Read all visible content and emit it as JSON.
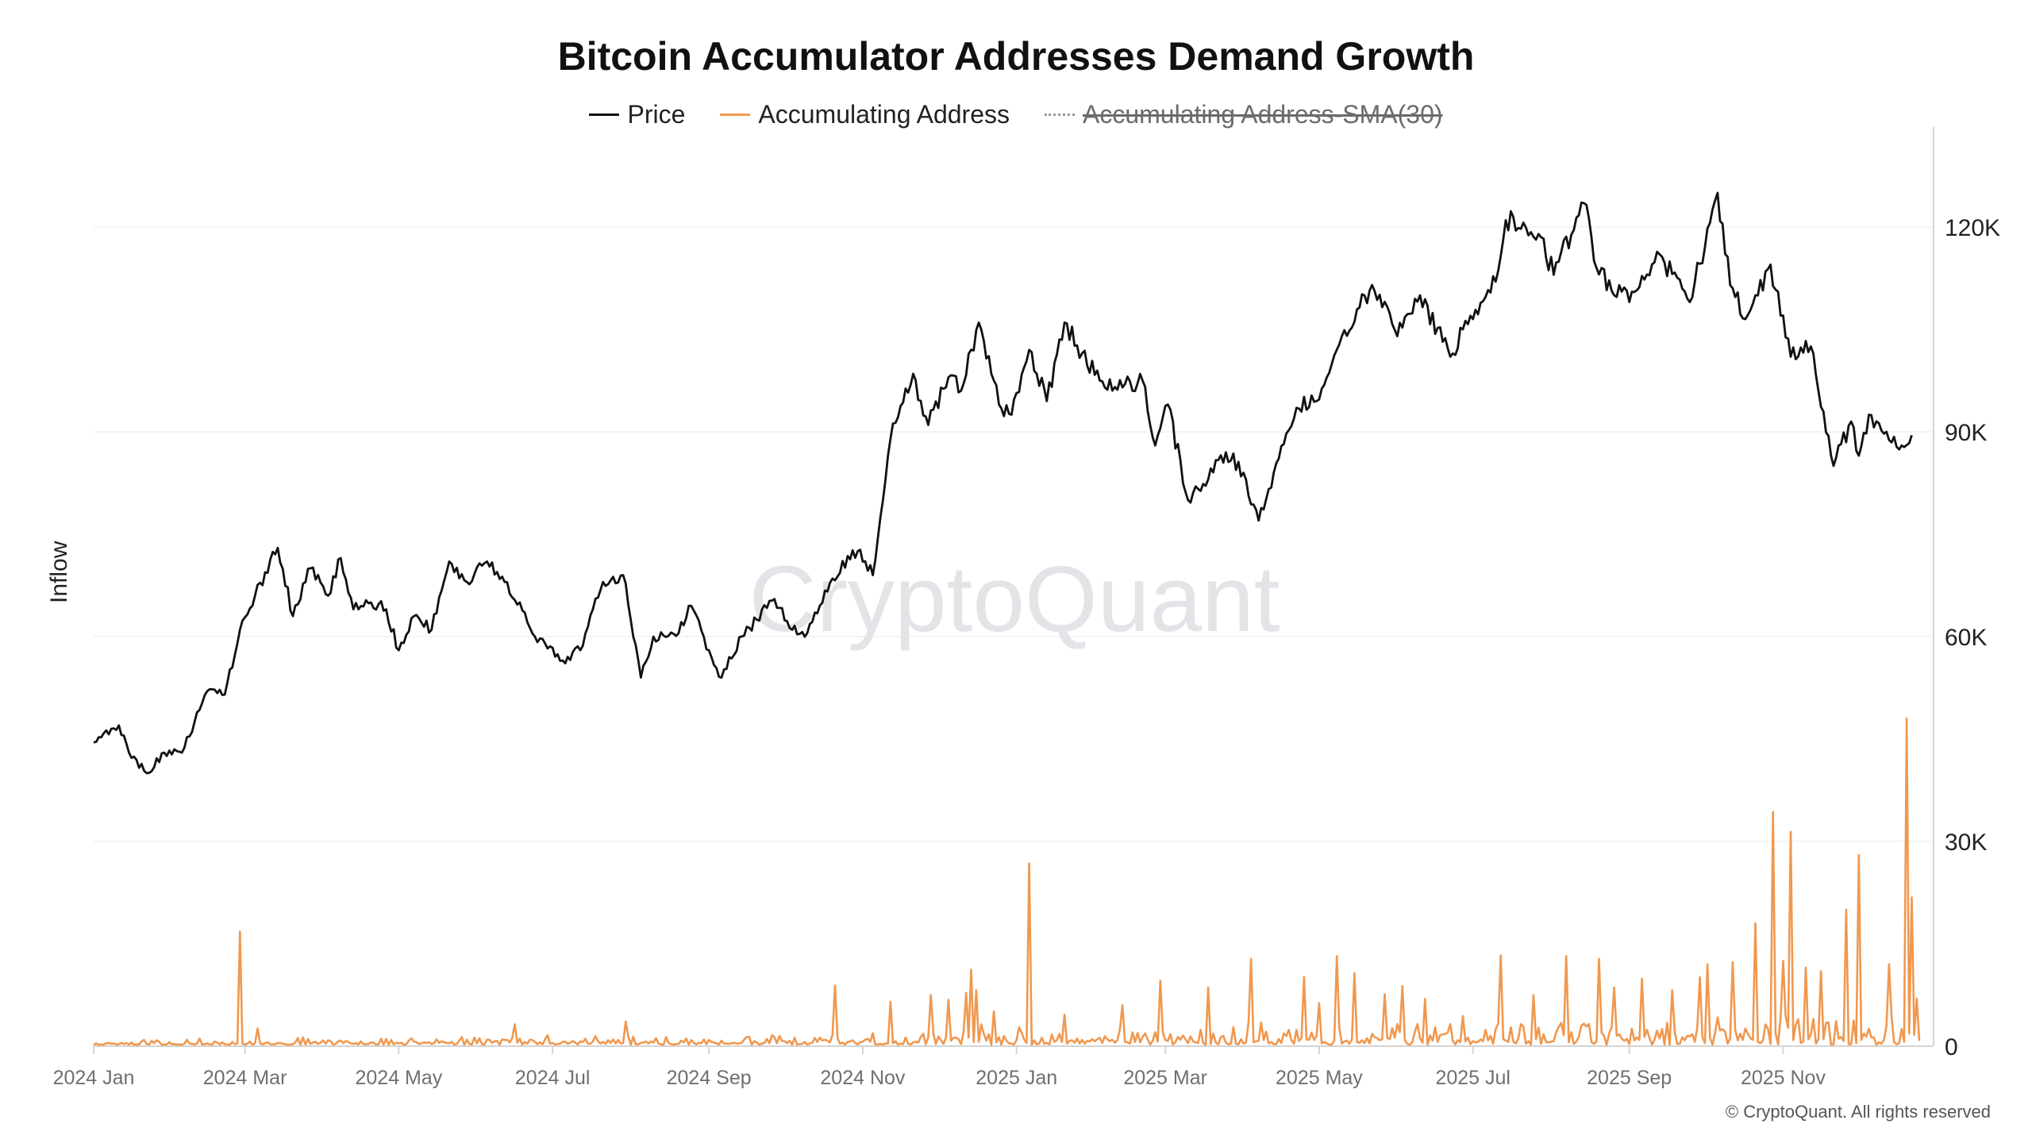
{
  "chart_data": {
    "type": "line",
    "title": "Bitcoin Accumulator Addresses Demand Growth",
    "ylabel": "Inflow",
    "y_axis_position": "right",
    "ylim": [
      0,
      130000
    ],
    "y_ticks": [
      0,
      30000,
      60000,
      90000,
      120000
    ],
    "y_tick_labels": [
      "0",
      "30K",
      "60K",
      "90K",
      "120K"
    ],
    "x_range": [
      "2024-01-01",
      "2025-12-25"
    ],
    "x_ticks": [
      "2024-01-01",
      "2024-03-01",
      "2024-05-01",
      "2024-07-01",
      "2024-09-01",
      "2024-11-01",
      "2025-01-01",
      "2025-03-01",
      "2025-05-01",
      "2025-07-01",
      "2025-09-01",
      "2025-11-01"
    ],
    "x_tick_labels": [
      "2024 Jan",
      "2024 Mar",
      "2024 May",
      "2024 Jul",
      "2024 Sep",
      "2024 Nov",
      "2025 Jan",
      "2025 Mar",
      "2025 May",
      "2025 Jul",
      "2025 Sep",
      "2025 Nov"
    ],
    "grid": true,
    "legend_position": "top-center",
    "watermark": "CryptoQuant",
    "copyright": "© CryptoQuant. All rights reserved",
    "series": [
      {
        "name": "Price",
        "color": "#111111",
        "visible": true,
        "points": [
          [
            "2024-01-01",
            44500
          ],
          [
            "2024-01-08",
            46500
          ],
          [
            "2024-01-11",
            47000
          ],
          [
            "2024-01-15",
            43000
          ],
          [
            "2024-01-22",
            40000
          ],
          [
            "2024-01-29",
            43000
          ],
          [
            "2024-02-05",
            43000
          ],
          [
            "2024-02-10",
            47500
          ],
          [
            "2024-02-15",
            52000
          ],
          [
            "2024-02-22",
            51500
          ],
          [
            "2024-02-28",
            61000
          ],
          [
            "2024-03-05",
            66000
          ],
          [
            "2024-03-14",
            73000
          ],
          [
            "2024-03-20",
            63000
          ],
          [
            "2024-03-27",
            70000
          ],
          [
            "2024-04-03",
            66000
          ],
          [
            "2024-04-08",
            71500
          ],
          [
            "2024-04-13",
            64000
          ],
          [
            "2024-04-20",
            65000
          ],
          [
            "2024-04-26",
            64000
          ],
          [
            "2024-05-01",
            58000
          ],
          [
            "2024-05-07",
            63000
          ],
          [
            "2024-05-14",
            61000
          ],
          [
            "2024-05-21",
            71000
          ],
          [
            "2024-05-28",
            68000
          ],
          [
            "2024-06-05",
            71000
          ],
          [
            "2024-06-12",
            68000
          ],
          [
            "2024-06-18",
            65000
          ],
          [
            "2024-06-24",
            60000
          ],
          [
            "2024-07-05",
            56500
          ],
          [
            "2024-07-12",
            58000
          ],
          [
            "2024-07-21",
            68000
          ],
          [
            "2024-07-29",
            69000
          ],
          [
            "2024-08-05",
            54000
          ],
          [
            "2024-08-10",
            60000
          ],
          [
            "2024-08-20",
            60500
          ],
          [
            "2024-08-25",
            64500
          ],
          [
            "2024-09-01",
            58000
          ],
          [
            "2024-09-06",
            54000
          ],
          [
            "2024-09-14",
            60000
          ],
          [
            "2024-09-27",
            65500
          ],
          [
            "2024-10-04",
            61000
          ],
          [
            "2024-10-10",
            60500
          ],
          [
            "2024-10-20",
            68500
          ],
          [
            "2024-10-30",
            72500
          ],
          [
            "2024-11-05",
            69000
          ],
          [
            "2024-11-12",
            89000
          ],
          [
            "2024-11-21",
            98500
          ],
          [
            "2024-11-27",
            91000
          ],
          [
            "2024-12-05",
            98000
          ],
          [
            "2024-12-10",
            96000
          ],
          [
            "2024-12-17",
            106000
          ],
          [
            "2024-12-25",
            94000
          ],
          [
            "2024-12-30",
            92500
          ],
          [
            "2025-01-06",
            102000
          ],
          [
            "2025-01-13",
            94500
          ],
          [
            "2025-01-20",
            106000
          ],
          [
            "2025-01-27",
            101500
          ],
          [
            "2025-02-03",
            97500
          ],
          [
            "2025-02-12",
            96500
          ],
          [
            "2025-02-20",
            97500
          ],
          [
            "2025-02-25",
            88000
          ],
          [
            "2025-03-02",
            94000
          ],
          [
            "2025-03-10",
            80000
          ],
          [
            "2025-03-18",
            83000
          ],
          [
            "2025-03-25",
            87000
          ],
          [
            "2025-04-01",
            84000
          ],
          [
            "2025-04-07",
            77000
          ],
          [
            "2025-04-13",
            84000
          ],
          [
            "2025-04-22",
            93500
          ],
          [
            "2025-04-30",
            94500
          ],
          [
            "2025-05-10",
            104000
          ],
          [
            "2025-05-22",
            111500
          ],
          [
            "2025-06-01",
            104000
          ],
          [
            "2025-06-10",
            110000
          ],
          [
            "2025-06-22",
            101000
          ],
          [
            "2025-06-30",
            107000
          ],
          [
            "2025-07-10",
            112000
          ],
          [
            "2025-07-14",
            121000
          ],
          [
            "2025-07-28",
            118500
          ],
          [
            "2025-08-02",
            113000
          ],
          [
            "2025-08-14",
            123500
          ],
          [
            "2025-08-19",
            114000
          ],
          [
            "2025-08-26",
            110000
          ],
          [
            "2025-09-02",
            110500
          ],
          [
            "2025-09-13",
            116000
          ],
          [
            "2025-09-25",
            109000
          ],
          [
            "2025-10-06",
            125000
          ],
          [
            "2025-10-11",
            111500
          ],
          [
            "2025-10-17",
            106500
          ],
          [
            "2025-10-27",
            114500
          ],
          [
            "2025-11-04",
            101000
          ],
          [
            "2025-11-12",
            102500
          ],
          [
            "2025-11-21",
            85000
          ],
          [
            "2025-11-28",
            91500
          ],
          [
            "2025-12-01",
            86500
          ],
          [
            "2025-12-05",
            92500
          ],
          [
            "2025-12-12",
            90000
          ],
          [
            "2025-12-18",
            88000
          ],
          [
            "2025-12-22",
            89500
          ]
        ]
      },
      {
        "name": "Accumulating Address",
        "color": "#f0984f",
        "visible": true,
        "baseline_range": [
          200,
          3500
        ],
        "spikes": [
          [
            "2024-02-28",
            16800
          ],
          [
            "2024-03-06",
            2600
          ],
          [
            "2024-06-16",
            3200
          ],
          [
            "2024-07-30",
            3600
          ],
          [
            "2024-10-21",
            8900
          ],
          [
            "2024-11-12",
            6500
          ],
          [
            "2024-11-28",
            7500
          ],
          [
            "2024-12-05",
            6800
          ],
          [
            "2024-12-12",
            7800
          ],
          [
            "2024-12-14",
            11200
          ],
          [
            "2024-12-16",
            8200
          ],
          [
            "2024-12-23",
            5100
          ],
          [
            "2025-01-06",
            26800
          ],
          [
            "2025-01-20",
            4600
          ],
          [
            "2025-02-12",
            6000
          ],
          [
            "2025-02-27",
            9600
          ],
          [
            "2025-03-18",
            8600
          ],
          [
            "2025-04-04",
            12800
          ],
          [
            "2025-04-25",
            10100
          ],
          [
            "2025-05-01",
            6300
          ],
          [
            "2025-05-08",
            13200
          ],
          [
            "2025-05-15",
            10700
          ],
          [
            "2025-05-27",
            7600
          ],
          [
            "2025-06-03",
            8800
          ],
          [
            "2025-06-12",
            6900
          ],
          [
            "2025-06-27",
            4400
          ],
          [
            "2025-07-12",
            13300
          ],
          [
            "2025-07-25",
            7500
          ],
          [
            "2025-08-07",
            13200
          ],
          [
            "2025-08-20",
            12800
          ],
          [
            "2025-08-26",
            8600
          ],
          [
            "2025-09-06",
            9900
          ],
          [
            "2025-09-18",
            8200
          ],
          [
            "2025-09-29",
            10100
          ],
          [
            "2025-10-02",
            12000
          ],
          [
            "2025-10-12",
            12300
          ],
          [
            "2025-10-21",
            18000
          ],
          [
            "2025-10-28",
            34300
          ],
          [
            "2025-11-01",
            12500
          ],
          [
            "2025-11-04",
            31400
          ],
          [
            "2025-11-10",
            11500
          ],
          [
            "2025-11-16",
            11000
          ],
          [
            "2025-11-26",
            20000
          ],
          [
            "2025-12-01",
            28000
          ],
          [
            "2025-12-13",
            12000
          ],
          [
            "2025-12-20",
            48000
          ],
          [
            "2025-12-22",
            21800
          ],
          [
            "2025-12-24",
            7000
          ]
        ]
      },
      {
        "name": "Accumulating Address-SMA(30)",
        "color": "#9a9a9a",
        "visible": false
      }
    ]
  }
}
